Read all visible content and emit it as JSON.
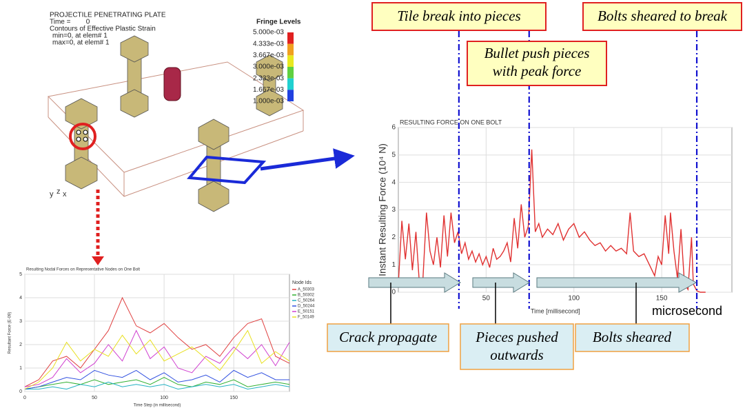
{
  "sim": {
    "title": "PROJECTILE PENETRATING PLATE",
    "time": "Time =        0",
    "contours": "Contours of Effective Plastic Strain",
    "min": "min=0, at elem# 1",
    "max": "max=0, at elem# 1",
    "fringe_title": "Fringe Levels",
    "fringe_levels": [
      "5.000e-03",
      "4.333e-03",
      "3.667e-03",
      "3.000e-03",
      "2.333e-03",
      "1.667e-03",
      "1.000e-03"
    ],
    "fringe_colors": [
      "#e02020",
      "#f0a020",
      "#e8e820",
      "#60d040",
      "#20d0d0",
      "#2040e0"
    ]
  },
  "callouts": {
    "tile": "Tile break into pieces",
    "bolts_break": "Bolts sheared to break",
    "bullet": [
      "Bullet push pieces",
      "with peak force"
    ],
    "crack": "Crack propagate",
    "pieces": [
      "Pieces pushed",
      "outwards"
    ],
    "bolts": "Bolts sheared",
    "unit": "microsecond"
  },
  "chart_data": [
    {
      "type": "line",
      "title": "RESULTING FORCE ON ONE BOLT",
      "xlabel": "Time [millisecond]",
      "ylabel": "Instant Resulting Force (10⁴ N)",
      "x": [
        0,
        2,
        4,
        6,
        8,
        10,
        12,
        14,
        16,
        18,
        20,
        22,
        24,
        26,
        28,
        30,
        32,
        34,
        36,
        38,
        40,
        42,
        44,
        46,
        48,
        50,
        52,
        54,
        56,
        58,
        60,
        62,
        64,
        66,
        68,
        70,
        72,
        74,
        76,
        78,
        80,
        82,
        85,
        88,
        91,
        94,
        97,
        100,
        103,
        106,
        109,
        112,
        115,
        118,
        121,
        124,
        127,
        130,
        132,
        134,
        137,
        140,
        143,
        146,
        148,
        150,
        152,
        154,
        155,
        157,
        159,
        161,
        163,
        165,
        167,
        168,
        170,
        172,
        175
      ],
      "series": [
        {
          "color": "#e03030",
          "values": [
            0.3,
            2.6,
            1.2,
            2.5,
            0.8,
            2.2,
            0.3,
            0.5,
            2.9,
            1.5,
            1.0,
            2.0,
            0.9,
            2.8,
            1.3,
            2.9,
            1.8,
            2.2,
            1.4,
            1.8,
            1.2,
            1.5,
            1.1,
            1.4,
            1.0,
            1.3,
            0.9,
            1.6,
            1.2,
            1.3,
            1.5,
            1.8,
            1.1,
            2.7,
            1.6,
            3.2,
            2.0,
            2.4,
            5.2,
            2.2,
            2.5,
            2.0,
            2.3,
            2.1,
            2.5,
            1.9,
            2.3,
            2.5,
            2.0,
            2.2,
            1.9,
            1.7,
            1.8,
            1.5,
            1.7,
            1.5,
            1.6,
            1.4,
            2.9,
            1.5,
            1.3,
            1.4,
            1.0,
            0.6,
            1.3,
            1.0,
            2.8,
            1.4,
            2.9,
            1.5,
            0.5,
            2.3,
            0.3,
            0.1,
            2.0,
            0.3,
            0.05,
            0,
            0
          ]
        }
      ],
      "event_lines": [
        34.5,
        74.5,
        170
      ],
      "event_color": "#1010d0",
      "xlim": [
        0,
        190
      ],
      "ylim": [
        0,
        6
      ],
      "xticks": [
        50,
        100,
        150
      ],
      "yticks": [
        0,
        1,
        2,
        3,
        4,
        5,
        6
      ],
      "grid": true
    },
    {
      "type": "line",
      "title": "Resulting Nodal Forces on Representative Nodes on One Bolt",
      "xlabel": "Time Step (in millisecond)",
      "ylabel": "Resultant Force (E-09)",
      "legend_title": "Node Ids",
      "x": [
        0,
        10,
        20,
        30,
        40,
        50,
        60,
        70,
        80,
        90,
        100,
        110,
        120,
        130,
        140,
        150,
        160,
        170,
        180,
        190
      ],
      "series": [
        {
          "name": "A_50303",
          "color": "#e04040",
          "values": [
            0.2,
            0.5,
            1.3,
            1.5,
            1.0,
            1.8,
            2.6,
            4.0,
            2.8,
            2.5,
            2.9,
            2.3,
            1.8,
            2.0,
            1.5,
            2.3,
            2.9,
            3.1,
            1.5,
            1.2
          ]
        },
        {
          "name": "B_50302",
          "color": "#30b030",
          "values": [
            0.1,
            0.2,
            0.3,
            0.4,
            0.3,
            0.5,
            0.3,
            0.4,
            0.5,
            0.3,
            0.6,
            0.3,
            0.2,
            0.4,
            0.3,
            0.5,
            0.2,
            0.3,
            0.4,
            0.3
          ]
        },
        {
          "name": "C_50264",
          "color": "#20b0c0",
          "values": [
            0.1,
            0.1,
            0.2,
            0.1,
            0.3,
            0.2,
            0.4,
            0.2,
            0.3,
            0.2,
            0.3,
            0.1,
            0.2,
            0.3,
            0.2,
            0.3,
            0.1,
            0.2,
            0.3,
            0.2
          ]
        },
        {
          "name": "D_50244",
          "color": "#3050e0",
          "values": [
            0.1,
            0.2,
            0.4,
            0.6,
            0.5,
            0.9,
            0.7,
            0.6,
            0.9,
            0.5,
            0.8,
            0.4,
            0.5,
            0.7,
            0.4,
            0.9,
            0.6,
            0.8,
            0.5,
            0.5
          ]
        },
        {
          "name": "E_50151",
          "color": "#d040d0",
          "values": [
            0.2,
            0.3,
            0.6,
            1.4,
            0.8,
            1.2,
            2.0,
            1.3,
            2.6,
            1.4,
            1.9,
            1.0,
            0.8,
            1.5,
            1.2,
            1.9,
            1.4,
            2.0,
            1.1,
            2.1
          ]
        },
        {
          "name": "F_50149",
          "color": "#e8e020",
          "values": [
            0.1,
            0.4,
            1.0,
            2.1,
            1.3,
            1.8,
            1.5,
            2.4,
            1.6,
            2.2,
            1.3,
            1.6,
            1.9,
            1.4,
            0.9,
            1.7,
            2.6,
            1.2,
            1.7,
            1.3
          ]
        }
      ],
      "xlim": [
        0,
        190
      ],
      "ylim": [
        0,
        5
      ],
      "xticks": [
        0,
        50,
        100,
        150
      ],
      "yticks": [
        0,
        1,
        2,
        3,
        4,
        5
      ],
      "grid": true
    }
  ]
}
